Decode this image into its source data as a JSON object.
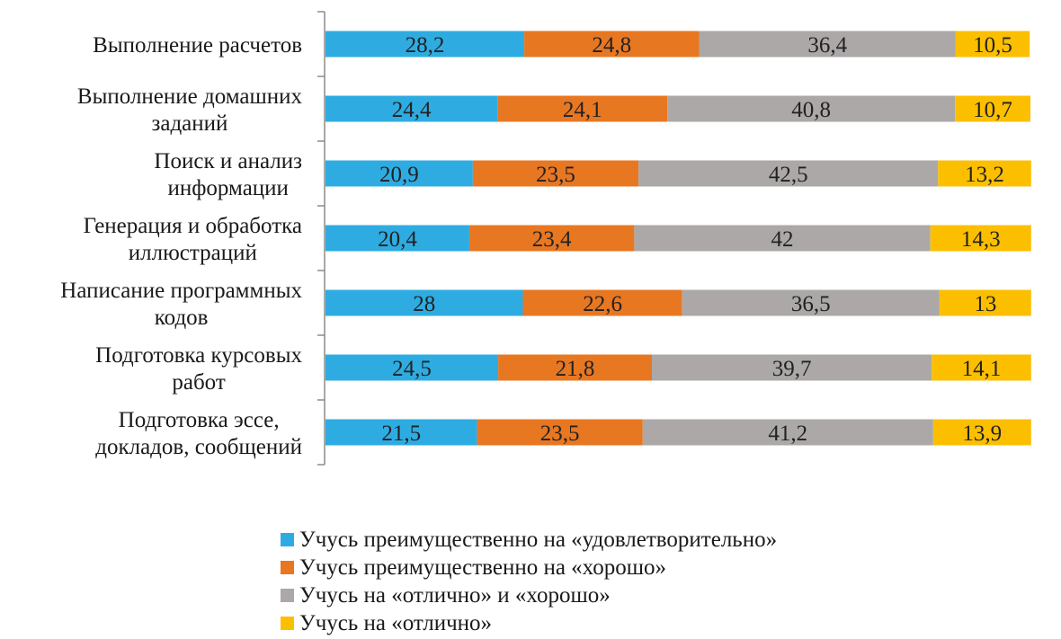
{
  "chart_data": {
    "type": "bar",
    "orientation": "horizontal",
    "stacked": true,
    "title": "",
    "xlabel": "",
    "ylabel": "",
    "xlim": [
      0,
      100
    ],
    "grid": false,
    "legend_position": "bottom",
    "categories": [
      [
        "Выполнение расчетов"
      ],
      [
        "Выполнение домашних",
        "заданий"
      ],
      [
        "Поиск и анализ",
        "информации"
      ],
      [
        "Генерация и обработка",
        "иллюстраций"
      ],
      [
        "Написание программных",
        "кодов"
      ],
      [
        "Подготовка курсовых",
        "работ"
      ],
      [
        "Подготовка эссе,",
        "докладов, сообщений"
      ]
    ],
    "series": [
      {
        "name": "Учусь преимущественно на «удовлетворительно»",
        "color": "#2EACE2",
        "values": [
          28.2,
          24.4,
          20.9,
          20.4,
          28,
          24.5,
          21.5
        ],
        "labels": [
          "28,2",
          "24,4",
          "20,9",
          "20,4",
          "28",
          "24,5",
          "21,5"
        ]
      },
      {
        "name": "Учусь преимущественно на «хорошо»",
        "color": "#E87722",
        "values": [
          24.8,
          24.1,
          23.5,
          23.4,
          22.6,
          21.8,
          23.5
        ],
        "labels": [
          "24,8",
          "24,1",
          "23,5",
          "23,4",
          "22,6",
          "21,8",
          "23,5"
        ]
      },
      {
        "name": "Учусь на «отлично» и «хорошо»",
        "color": "#ABA8A7",
        "values": [
          36.4,
          40.8,
          42.5,
          42,
          36.5,
          39.7,
          41.2
        ],
        "labels": [
          "36,4",
          "40,8",
          "42,5",
          "42",
          "36,5",
          "39,7",
          "41,2"
        ]
      },
      {
        "name": "Учусь на «отлично»",
        "color": "#FCBF00",
        "values": [
          10.5,
          10.7,
          13.2,
          14.3,
          13,
          14.1,
          13.9
        ],
        "labels": [
          "10,5",
          "10,7",
          "13,2",
          "14,3",
          "13",
          "14,1",
          "13,9"
        ]
      }
    ]
  },
  "legend": {
    "items": [
      {
        "label": "Учусь преимущественно на «удовлетворительно»",
        "color": "#2EACE2"
      },
      {
        "label": "Учусь преимущественно на «хорошо»",
        "color": "#E87722"
      },
      {
        "label": "Учусь на «отлично» и «хорошо»",
        "color": "#ABA8A7"
      },
      {
        "label": "Учусь на «отлично»",
        "color": "#FCBF00"
      }
    ]
  }
}
